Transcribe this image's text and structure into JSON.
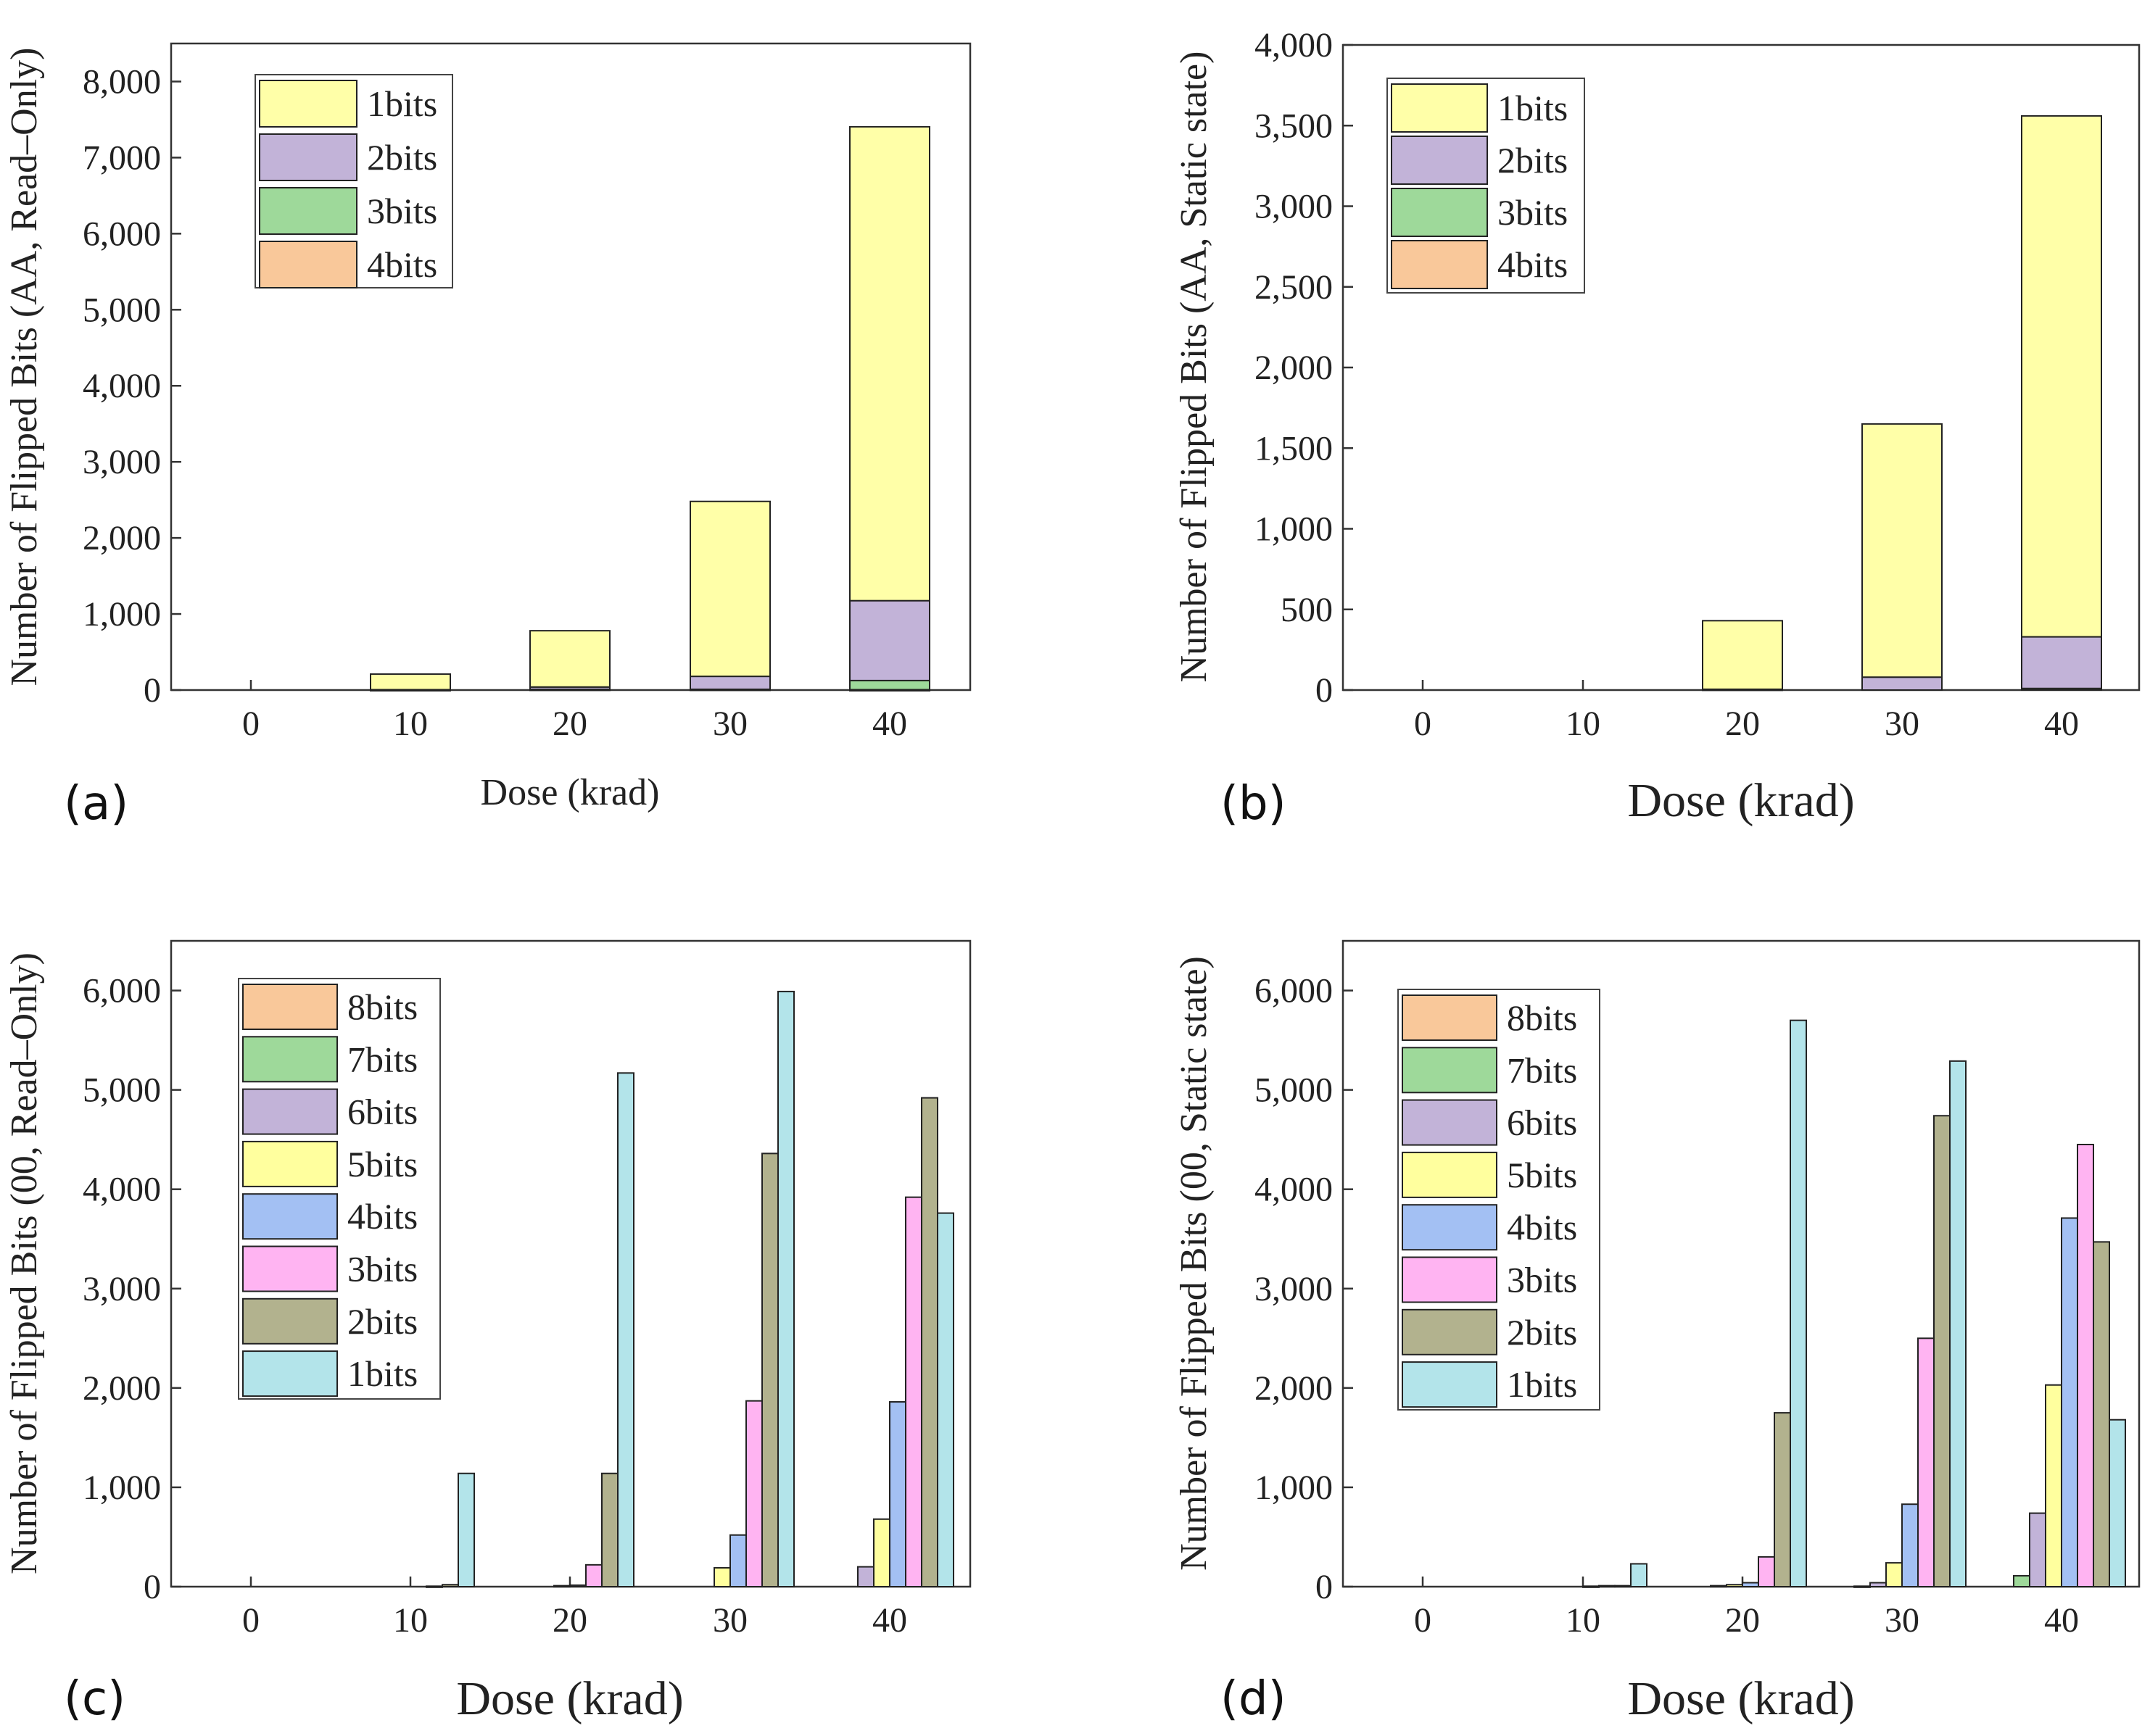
{
  "colors": {
    "1bits_stack": "#ffffa8",
    "2bits_stack": "#c2b3d8",
    "3bits_stack": "#9ed99a",
    "4bits_stack": "#f9c89a",
    "8bits": "#f9c89a",
    "7bits": "#9ed99a",
    "6bits": "#c2b3d8",
    "5bits": "#ffff9e",
    "4bits": "#a3c0f3",
    "3bits": "#ffb4f2",
    "2bits": "#b2b28e",
    "1bits": "#b3e4ea"
  },
  "chart_data": [
    {
      "id": "a",
      "panel_label": "(a)",
      "type": "bar",
      "stacked": true,
      "categories": [
        "0",
        "10",
        "20",
        "30",
        "40"
      ],
      "xlabel": "Dose (krad)",
      "ylabel": "Number of Flipped Bits (AA, Read–Only)",
      "ylim": [
        0,
        8500
      ],
      "yticks": [
        0,
        1000,
        2000,
        3000,
        4000,
        5000,
        6000,
        7000,
        8000
      ],
      "ytick_labels": [
        "0",
        "1,000",
        "2,000",
        "3,000",
        "4,000",
        "5,000",
        "6,000",
        "7,000",
        "8,000"
      ],
      "legend_position": "top-left",
      "legend": [
        "1bits",
        "2bits",
        "3bits",
        "4bits"
      ],
      "series": [
        {
          "name": "4bits",
          "color_key": "4bits_stack",
          "values": [
            0,
            0,
            0,
            0,
            5
          ]
        },
        {
          "name": "3bits",
          "color_key": "3bits_stack",
          "values": [
            0,
            0,
            10,
            10,
            120
          ]
        },
        {
          "name": "2bits",
          "color_key": "2bits_stack",
          "values": [
            0,
            5,
            30,
            170,
            1050
          ]
        },
        {
          "name": "1bits",
          "color_key": "1bits_stack",
          "values": [
            0,
            205,
            740,
            2300,
            6230
          ]
        }
      ]
    },
    {
      "id": "b",
      "panel_label": "(b)",
      "type": "bar",
      "stacked": true,
      "categories": [
        "0",
        "10",
        "20",
        "30",
        "40"
      ],
      "xlabel": "Dose (krad)",
      "ylabel": "Number of Flipped Bits (AA, Static state)",
      "ylim": [
        0,
        4000
      ],
      "yticks": [
        0,
        500,
        1000,
        1500,
        2000,
        2500,
        3000,
        3500,
        4000
      ],
      "ytick_labels": [
        "0",
        "500",
        "1,000",
        "1,500",
        "2,000",
        "2,500",
        "3,000",
        "3,500",
        "4,000"
      ],
      "legend_position": "top-left",
      "legend": [
        "1bits",
        "2bits",
        "3bits",
        "4bits"
      ],
      "series": [
        {
          "name": "4bits",
          "color_key": "4bits_stack",
          "values": [
            0,
            0,
            0,
            0,
            0
          ]
        },
        {
          "name": "3bits",
          "color_key": "3bits_stack",
          "values": [
            0,
            0,
            0,
            0,
            10
          ]
        },
        {
          "name": "2bits",
          "color_key": "2bits_stack",
          "values": [
            0,
            0,
            5,
            80,
            320
          ]
        },
        {
          "name": "1bits",
          "color_key": "1bits_stack",
          "values": [
            0,
            0,
            425,
            1570,
            3230
          ]
        }
      ]
    },
    {
      "id": "c",
      "panel_label": "(c)",
      "type": "bar",
      "stacked": false,
      "categories": [
        "0",
        "10",
        "20",
        "30",
        "40"
      ],
      "xlabel": "Dose (krad)",
      "ylabel": "Number of Flipped Bits (00, Read–Only)",
      "ylim": [
        0,
        6500
      ],
      "yticks": [
        0,
        1000,
        2000,
        3000,
        4000,
        5000,
        6000
      ],
      "ytick_labels": [
        "0",
        "1,000",
        "2,000",
        "3,000",
        "4,000",
        "5,000",
        "6,000"
      ],
      "legend_position": "top-left",
      "legend": [
        "8bits",
        "7bits",
        "6bits",
        "5bits",
        "4bits",
        "3bits",
        "2bits",
        "1bits"
      ],
      "series": [
        {
          "name": "8bits",
          "color_key": "8bits",
          "values": [
            0,
            0,
            0,
            0,
            0
          ]
        },
        {
          "name": "7bits",
          "color_key": "7bits",
          "values": [
            0,
            0,
            0,
            0,
            0
          ]
        },
        {
          "name": "6bits",
          "color_key": "6bits",
          "values": [
            0,
            0,
            0,
            0,
            200
          ]
        },
        {
          "name": "5bits",
          "color_key": "5bits",
          "values": [
            0,
            0,
            10,
            190,
            680
          ]
        },
        {
          "name": "4bits",
          "color_key": "4bits",
          "values": [
            0,
            0,
            15,
            520,
            1860
          ]
        },
        {
          "name": "3bits",
          "color_key": "3bits",
          "values": [
            0,
            5,
            220,
            1870,
            3920
          ]
        },
        {
          "name": "2bits",
          "color_key": "2bits",
          "values": [
            0,
            20,
            1140,
            4360,
            4920
          ]
        },
        {
          "name": "1bits",
          "color_key": "1bits",
          "values": [
            0,
            1140,
            5170,
            5990,
            3760
          ]
        }
      ]
    },
    {
      "id": "d",
      "panel_label": "(d)",
      "type": "bar",
      "stacked": false,
      "categories": [
        "0",
        "10",
        "20",
        "30",
        "40"
      ],
      "xlabel": "Dose (krad)",
      "ylabel": "Number of Flipped Bits (00, Static state)",
      "ylim": [
        0,
        6500
      ],
      "yticks": [
        0,
        1000,
        2000,
        3000,
        4000,
        5000,
        6000
      ],
      "ytick_labels": [
        "0",
        "1,000",
        "2,000",
        "3,000",
        "4,000",
        "5,000",
        "6,000"
      ],
      "legend_position": "top-left",
      "legend": [
        "8bits",
        "7bits",
        "6bits",
        "5bits",
        "4bits",
        "3bits",
        "2bits",
        "1bits"
      ],
      "series": [
        {
          "name": "8bits",
          "color_key": "8bits",
          "values": [
            0,
            0,
            0,
            0,
            0
          ]
        },
        {
          "name": "7bits",
          "color_key": "7bits",
          "values": [
            0,
            0,
            0,
            5,
            110
          ]
        },
        {
          "name": "6bits",
          "color_key": "6bits",
          "values": [
            0,
            0,
            10,
            40,
            740
          ]
        },
        {
          "name": "5bits",
          "color_key": "5bits",
          "values": [
            0,
            0,
            20,
            240,
            2030
          ]
        },
        {
          "name": "4bits",
          "color_key": "4bits",
          "values": [
            0,
            5,
            40,
            830,
            3710
          ]
        },
        {
          "name": "3bits",
          "color_key": "3bits",
          "values": [
            0,
            10,
            300,
            2500,
            4450
          ]
        },
        {
          "name": "2bits",
          "color_key": "2bits",
          "values": [
            0,
            10,
            1750,
            4740,
            3470
          ]
        },
        {
          "name": "1bits",
          "color_key": "1bits",
          "values": [
            0,
            230,
            5700,
            5290,
            1680
          ]
        }
      ]
    }
  ]
}
